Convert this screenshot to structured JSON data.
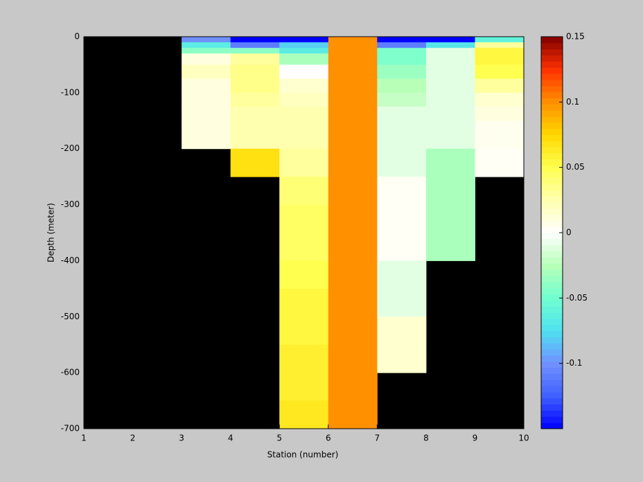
{
  "chart_data": {
    "type": "heatmap",
    "xlabel": "Station (number)",
    "ylabel": "Depth (meter)",
    "x_edges": [
      1,
      2,
      3,
      4,
      5,
      6,
      7,
      8,
      9,
      10
    ],
    "y_edges": [
      0,
      -10,
      -20,
      -30,
      -50,
      -75,
      -100,
      -125,
      -150,
      -200,
      -250,
      -300,
      -350,
      -400,
      -450,
      -500,
      -550,
      -600,
      -650,
      -700
    ],
    "values": [
      [
        null,
        null,
        -0.1,
        -0.15,
        -0.15,
        0.1,
        -0.15,
        -0.15,
        -0.06
      ],
      [
        null,
        null,
        -0.065,
        -0.11,
        -0.08,
        0.1,
        -0.11,
        -0.07,
        0.03
      ],
      [
        null,
        null,
        -0.04,
        -0.04,
        -0.065,
        0.1,
        -0.045,
        -0.01,
        0.055
      ],
      [
        null,
        null,
        0.01,
        0.03,
        -0.03,
        0.1,
        -0.045,
        -0.01,
        0.055
      ],
      [
        null,
        null,
        0.02,
        0.035,
        0.0,
        0.1,
        -0.035,
        -0.01,
        0.05
      ],
      [
        null,
        null,
        0.01,
        0.035,
        0.015,
        0.1,
        -0.025,
        -0.01,
        0.03
      ],
      [
        null,
        null,
        0.01,
        0.03,
        0.02,
        0.1,
        -0.02,
        -0.01,
        0.015
      ],
      [
        null,
        null,
        0.01,
        0.025,
        0.025,
        0.1,
        -0.01,
        -0.01,
        0.01
      ],
      [
        null,
        null,
        0.01,
        0.025,
        0.025,
        0.1,
        -0.01,
        -0.01,
        0.005
      ],
      [
        null,
        null,
        null,
        0.07,
        0.03,
        0.1,
        -0.01,
        -0.03,
        0.003
      ],
      [
        null,
        null,
        null,
        null,
        0.04,
        0.1,
        0.003,
        -0.03,
        null
      ],
      [
        null,
        null,
        null,
        null,
        0.045,
        0.1,
        0.003,
        -0.03,
        null
      ],
      [
        null,
        null,
        null,
        null,
        0.045,
        0.1,
        0.003,
        -0.03,
        null
      ],
      [
        null,
        null,
        null,
        null,
        0.05,
        0.1,
        -0.01,
        null,
        null
      ],
      [
        null,
        null,
        null,
        null,
        0.055,
        0.1,
        -0.01,
        null,
        null
      ],
      [
        null,
        null,
        null,
        null,
        0.055,
        0.1,
        0.015,
        null,
        null
      ],
      [
        null,
        null,
        null,
        null,
        0.06,
        0.1,
        0.015,
        null,
        null
      ],
      [
        null,
        null,
        null,
        null,
        0.06,
        0.1,
        null,
        null,
        null
      ],
      [
        null,
        null,
        null,
        null,
        0.065,
        0.1,
        null,
        null,
        null
      ]
    ],
    "xlim": [
      1,
      10
    ],
    "xticks": [
      1,
      2,
      3,
      4,
      5,
      6,
      7,
      8,
      9,
      10
    ],
    "ylim": [
      -700,
      0
    ],
    "yticks": [
      0,
      -100,
      -200,
      -300,
      -400,
      -500,
      -600,
      -700
    ],
    "clim": [
      -0.15,
      0.15
    ],
    "cticks": [
      0.15,
      0.1,
      0.05,
      0,
      -0.05,
      -0.1
    ],
    "colormap": [
      "#0000ff",
      "#4060ff",
      "#7090ff",
      "#50e0f0",
      "#70ffd0",
      "#b8ffb8",
      "#ffffff",
      "#ffffb0",
      "#ffff50",
      "#ffd800",
      "#ff9000",
      "#ff3000",
      "#800000"
    ],
    "missing_color": "#000000"
  }
}
